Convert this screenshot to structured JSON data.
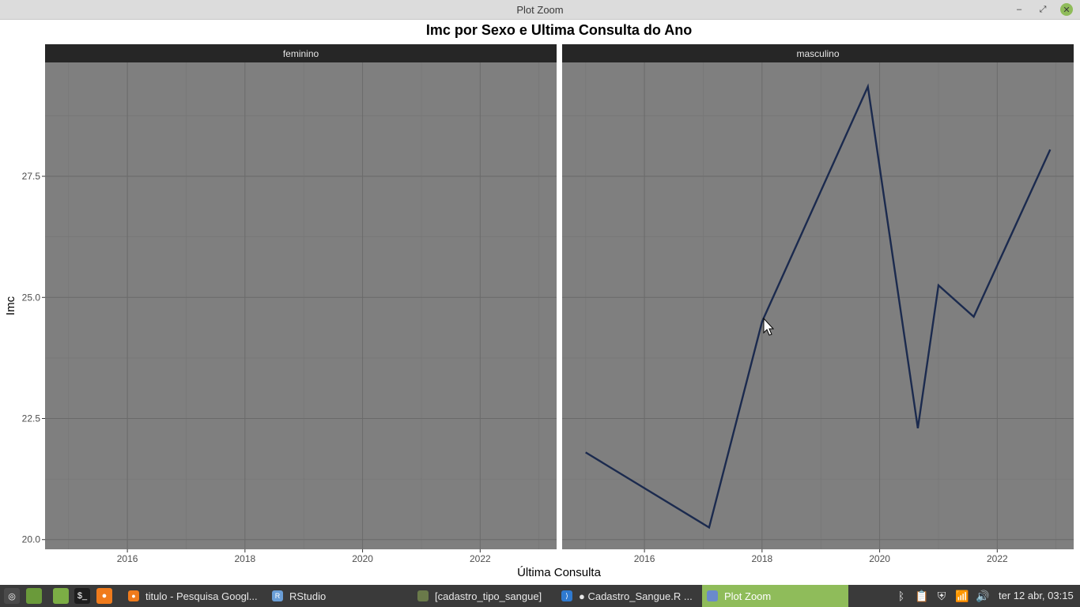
{
  "window": {
    "title": "Plot Zoom",
    "controls": {
      "minimize": "–",
      "maximize": "⤢",
      "close": "✕"
    }
  },
  "chart_data": {
    "type": "line",
    "title": "Imc por Sexo e Ultima Consulta do Ano",
    "xlabel": "Última Consulta",
    "ylabel": "Imc",
    "facets": [
      "feminino",
      "masculino"
    ],
    "xlim": [
      2014.6,
      2023.3
    ],
    "ylim": [
      19.8,
      29.85
    ],
    "x_ticks": [
      2016,
      2018,
      2020,
      2022
    ],
    "x_tick_labels": [
      "2016",
      "2018",
      "2020",
      "2022"
    ],
    "y_ticks": [
      20.0,
      22.5,
      25.0,
      27.5
    ],
    "y_tick_labels": [
      "20.0",
      "22.5",
      "25.0",
      "27.5"
    ],
    "line_color": "#1b2a4e",
    "panel_background": "#7f7f7f",
    "strip_background": "#262626",
    "series": [
      {
        "facet": "feminino",
        "x": [],
        "y": []
      },
      {
        "facet": "masculino",
        "x": [
          2015.0,
          2017.1,
          2018.0,
          2019.8,
          2020.65,
          2021.0,
          2021.6,
          2022.9
        ],
        "y": [
          21.8,
          20.25,
          24.5,
          29.35,
          22.3,
          25.25,
          24.6,
          28.05
        ]
      }
    ]
  },
  "taskbar": {
    "launchers": [
      {
        "name": "mint-menu-icon",
        "glyph": "◎",
        "color": "#4a4a4a"
      },
      {
        "name": "show-desktop-icon",
        "glyph": "",
        "color": "#6a9a3a"
      },
      {
        "name": "file-manager-icon",
        "glyph": "",
        "color": "#7cae45"
      },
      {
        "name": "terminal-icon",
        "glyph": "$_",
        "color": "#1e1e1e"
      },
      {
        "name": "firefox-icon",
        "glyph": "●",
        "color": "#f07b1c"
      }
    ],
    "tasks": [
      {
        "label": "titulo - Pesquisa Googl...",
        "icon": "●",
        "color": "#f07b1c"
      },
      {
        "label": "RStudio",
        "icon": "R",
        "color": "#6a9ed6"
      },
      {
        "label": "[cadastro_tipo_sangue]",
        "icon": "",
        "color": "#6a7a4a"
      },
      {
        "label": "● Cadastro_Sangue.R ...",
        "icon": "⟩",
        "color": "#2f7ad0"
      },
      {
        "label": "Plot Zoom",
        "icon": "",
        "color": "#6a8acd"
      }
    ],
    "tray": {
      "bluetooth": "ᛒ",
      "clipboard": "📋",
      "shield": "⛨",
      "wifi": "📶",
      "volume": "🔊"
    },
    "clock": "ter 12 abr, 03:15"
  }
}
